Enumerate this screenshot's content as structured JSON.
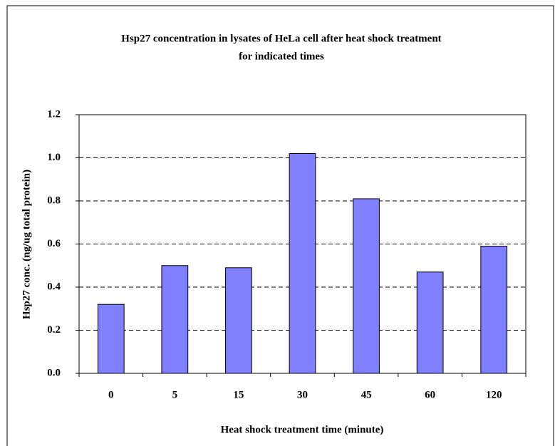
{
  "chart_data": {
    "type": "bar",
    "title": [
      "Hsp27 concentration in lysates of HeLa cell after heat shock treatment",
      "for indicated times"
    ],
    "x_label": "Heat shock treatment time (minute)",
    "y_label": "Hsp27 conc. (ng/ug total protein)",
    "categories": [
      "0",
      "5",
      "15",
      "30",
      "45",
      "60",
      "120"
    ],
    "values": [
      0.32,
      0.5,
      0.49,
      1.02,
      0.81,
      0.47,
      0.59
    ],
    "color": "#8080ff",
    "ylim": [
      0,
      1.2
    ],
    "yticks": [
      {
        "value": 0,
        "label": "0.0"
      },
      0.2,
      0.4,
      0.6,
      0.8,
      {
        "value": 1,
        "label": "1.0"
      },
      1.2
    ],
    "grid": true
  }
}
